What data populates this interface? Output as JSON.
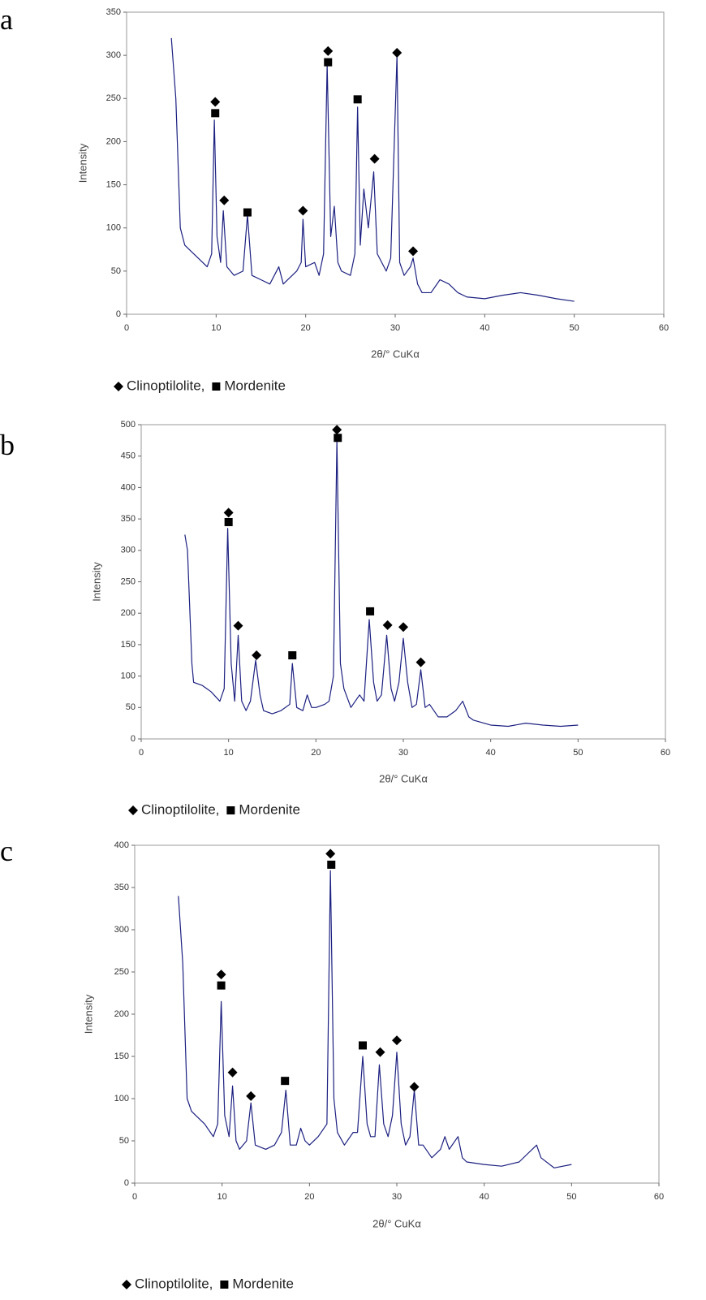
{
  "chart_data": [
    {
      "type": "line",
      "panel_label": "a",
      "ylabel": "Intensity",
      "xlabel": "2θ/° CuKα",
      "xlim": [
        0,
        60
      ],
      "xticks": [
        0,
        10,
        20,
        30,
        40,
        50,
        60
      ],
      "ylim": [
        0,
        350
      ],
      "yticks": [
        0,
        50,
        100,
        150,
        200,
        250,
        300,
        350
      ],
      "series": [
        {
          "color": "#1c2080",
          "x": [
            5,
            5.5,
            6,
            6.5,
            7,
            8,
            9,
            9.5,
            9.8,
            10.1,
            10.5,
            10.8,
            11.2,
            12,
            13,
            13.5,
            14,
            15,
            16,
            17,
            17.5,
            18,
            19,
            19.5,
            19.7,
            20,
            21,
            21.5,
            22,
            22.4,
            22.8,
            23.2,
            23.6,
            24,
            25,
            25.5,
            25.8,
            26.1,
            26.5,
            27,
            27.6,
            28,
            29,
            29.5,
            30.2,
            30.5,
            31,
            31.7,
            32,
            32.5,
            33,
            34,
            35,
            36,
            37,
            38,
            40,
            42,
            44,
            46,
            48,
            50
          ],
          "values": [
            320,
            250,
            100,
            80,
            75,
            65,
            55,
            70,
            225,
            90,
            60,
            120,
            55,
            45,
            50,
            115,
            45,
            40,
            35,
            55,
            35,
            40,
            50,
            60,
            110,
            55,
            60,
            45,
            70,
            290,
            90,
            125,
            60,
            50,
            45,
            70,
            240,
            80,
            145,
            100,
            165,
            70,
            50,
            65,
            300,
            60,
            45,
            55,
            65,
            35,
            25,
            25,
            40,
            35,
            25,
            20,
            18,
            22,
            25,
            22,
            18,
            15
          ]
        },
        {
          "name": "Clinoptilolite,",
          "marker": "diamond",
          "color": "#000000",
          "x": [
            9.9,
            10.9,
            19.7,
            22.5,
            27.7,
            30.2,
            32
          ],
          "values": [
            246,
            132,
            120,
            305,
            180,
            303,
            73
          ]
        },
        {
          "name": "Mordenite",
          "marker": "square",
          "color": "#000000",
          "x": [
            9.9,
            13.5,
            22.5,
            25.8
          ],
          "values": [
            233,
            118,
            292,
            249
          ]
        }
      ]
    },
    {
      "type": "line",
      "panel_label": "b",
      "ylabel": "Intensity",
      "xlabel": "2θ/° CuKα",
      "xlim": [
        0,
        60
      ],
      "xticks": [
        0,
        10,
        20,
        30,
        40,
        50,
        60
      ],
      "ylim": [
        0,
        500
      ],
      "yticks": [
        0,
        50,
        100,
        150,
        200,
        250,
        300,
        350,
        400,
        450,
        500
      ],
      "series": [
        {
          "color": "#1c2080",
          "x": [
            5,
            5.3,
            5.8,
            6,
            7,
            8,
            9,
            9.5,
            9.9,
            10.3,
            10.7,
            11.1,
            11.5,
            12,
            12.5,
            13.1,
            13.6,
            14,
            15,
            16,
            17,
            17.3,
            17.8,
            18.5,
            19,
            19.5,
            20,
            21,
            21.5,
            22,
            22.4,
            22.8,
            23.2,
            24,
            25,
            25.5,
            26.1,
            26.6,
            27,
            27.5,
            28.1,
            28.6,
            29,
            29.5,
            30,
            30.5,
            31,
            31.5,
            32,
            32.5,
            33,
            34,
            35,
            36,
            36.8,
            37.5,
            38,
            40,
            42,
            44,
            46,
            48,
            50
          ],
          "values": [
            325,
            300,
            120,
            90,
            85,
            75,
            60,
            80,
            335,
            120,
            60,
            165,
            60,
            45,
            60,
            125,
            70,
            45,
            40,
            45,
            55,
            120,
            50,
            45,
            70,
            50,
            50,
            55,
            60,
            100,
            475,
            120,
            80,
            50,
            70,
            60,
            190,
            90,
            60,
            70,
            165,
            80,
            60,
            90,
            160,
            90,
            50,
            55,
            110,
            50,
            55,
            35,
            35,
            45,
            60,
            35,
            30,
            22,
            20,
            25,
            22,
            20,
            22
          ]
        },
        {
          "name": "Clinoptilolite,",
          "marker": "diamond",
          "color": "#000000",
          "x": [
            10,
            11.1,
            13.2,
            22.4,
            28.2,
            30,
            32
          ],
          "values": [
            360,
            180,
            133,
            492,
            181,
            178,
            122
          ]
        },
        {
          "name": "Mordenite",
          "marker": "square",
          "color": "#000000",
          "x": [
            10,
            17.3,
            22.5,
            26.2
          ],
          "values": [
            345,
            133,
            479,
            203
          ]
        }
      ]
    },
    {
      "type": "line",
      "panel_label": "c",
      "ylabel": "Intensity",
      "xlabel": "2θ/° CuKα",
      "xlim": [
        0,
        60
      ],
      "xticks": [
        0,
        10,
        20,
        30,
        40,
        50,
        60
      ],
      "ylim": [
        0,
        400
      ],
      "yticks": [
        0,
        50,
        100,
        150,
        200,
        250,
        300,
        350,
        400
      ],
      "series": [
        {
          "color": "#1c2080",
          "x": [
            5,
            5.5,
            6,
            6.5,
            7,
            8,
            9,
            9.5,
            9.9,
            10.3,
            10.8,
            11.2,
            11.6,
            12,
            12.8,
            13.3,
            13.8,
            15,
            16,
            16.8,
            17.3,
            17.8,
            18.5,
            19,
            19.5,
            20,
            21,
            22,
            22.4,
            22.8,
            23.2,
            24,
            25,
            25.5,
            26.1,
            26.6,
            27,
            27.5,
            28,
            28.5,
            29,
            29.5,
            30,
            30.5,
            31,
            31.5,
            32,
            32.5,
            33,
            34,
            35,
            35.5,
            36,
            37,
            37.5,
            38,
            40,
            42,
            44,
            46,
            46.5,
            48,
            50
          ],
          "values": [
            340,
            260,
            100,
            85,
            80,
            70,
            55,
            70,
            215,
            80,
            55,
            115,
            50,
            40,
            50,
            95,
            45,
            40,
            45,
            60,
            110,
            45,
            45,
            65,
            50,
            45,
            55,
            70,
            370,
            100,
            60,
            45,
            60,
            60,
            150,
            70,
            55,
            55,
            140,
            70,
            55,
            80,
            155,
            70,
            45,
            55,
            110,
            45,
            45,
            30,
            40,
            55,
            40,
            55,
            30,
            25,
            22,
            20,
            25,
            45,
            30,
            18,
            22
          ]
        },
        {
          "name": "Clinoptilolite,",
          "marker": "diamond",
          "color": "#000000",
          "x": [
            9.9,
            11.2,
            13.3,
            22.4,
            28.1,
            30,
            32
          ],
          "values": [
            247,
            131,
            103,
            390,
            155,
            169,
            114
          ]
        },
        {
          "name": "Mordenite",
          "marker": "square",
          "color": "#000000",
          "x": [
            9.9,
            17.2,
            22.5,
            26.1
          ],
          "values": [
            234,
            121,
            377,
            163
          ]
        }
      ]
    }
  ]
}
